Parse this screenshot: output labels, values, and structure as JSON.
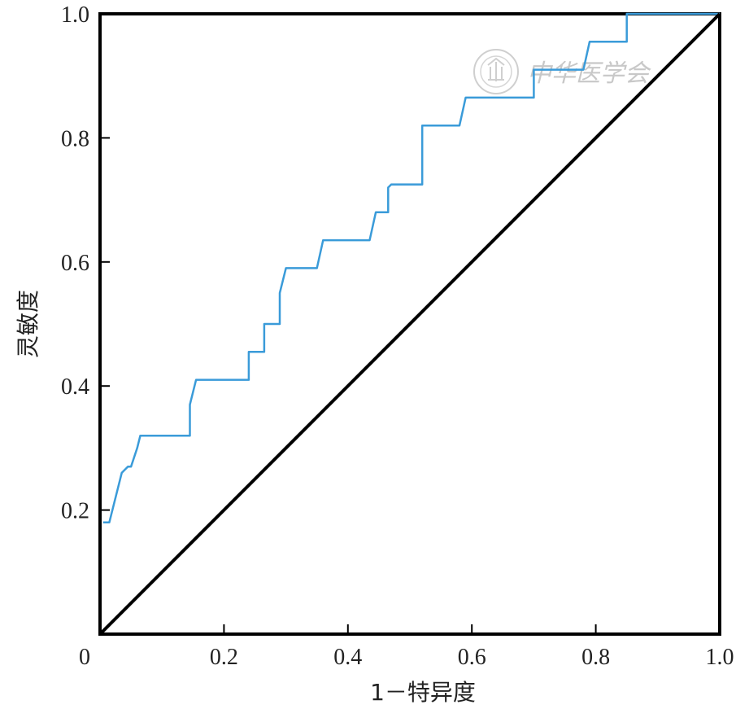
{
  "chart_data": {
    "type": "line",
    "title": "",
    "xlabel": "1－特异度",
    "ylabel": "灵敏度",
    "xlim": [
      0,
      1
    ],
    "ylim": [
      0,
      1
    ],
    "x_ticks": [
      {
        "value": 0,
        "label": "0"
      },
      {
        "value": 0.2,
        "label": "0.2"
      },
      {
        "value": 0.4,
        "label": "0.4"
      },
      {
        "value": 0.6,
        "label": "0.6"
      },
      {
        "value": 0.8,
        "label": "0.8"
      },
      {
        "value": 1.0,
        "label": "1.0"
      }
    ],
    "y_ticks": [
      {
        "value": 0.2,
        "label": "0.2"
      },
      {
        "value": 0.4,
        "label": "0.4"
      },
      {
        "value": 0.6,
        "label": "0.6"
      },
      {
        "value": 0.8,
        "label": "0.8"
      },
      {
        "value": 1.0,
        "label": "1.0"
      }
    ],
    "grid": false,
    "legend": "none",
    "series": [
      {
        "color": "#3a9bd9",
        "points": [
          [
            0.005,
            0.18
          ],
          [
            0.015,
            0.18
          ],
          [
            0.035,
            0.26
          ],
          [
            0.045,
            0.27
          ],
          [
            0.05,
            0.27
          ],
          [
            0.06,
            0.3
          ],
          [
            0.065,
            0.32
          ],
          [
            0.145,
            0.32
          ],
          [
            0.145,
            0.37
          ],
          [
            0.155,
            0.41
          ],
          [
            0.24,
            0.41
          ],
          [
            0.24,
            0.455
          ],
          [
            0.265,
            0.455
          ],
          [
            0.265,
            0.5
          ],
          [
            0.29,
            0.5
          ],
          [
            0.29,
            0.55
          ],
          [
            0.3,
            0.59
          ],
          [
            0.35,
            0.59
          ],
          [
            0.36,
            0.635
          ],
          [
            0.435,
            0.635
          ],
          [
            0.445,
            0.68
          ],
          [
            0.465,
            0.68
          ],
          [
            0.465,
            0.72
          ],
          [
            0.47,
            0.725
          ],
          [
            0.52,
            0.725
          ],
          [
            0.52,
            0.82
          ],
          [
            0.58,
            0.82
          ],
          [
            0.59,
            0.865
          ],
          [
            0.7,
            0.865
          ],
          [
            0.7,
            0.91
          ],
          [
            0.78,
            0.91
          ],
          [
            0.79,
            0.955
          ],
          [
            0.85,
            0.955
          ],
          [
            0.85,
            1.0
          ],
          [
            1.0,
            1.0
          ]
        ]
      },
      {
        "color": "#000000",
        "points": [
          [
            0,
            0
          ],
          [
            1,
            1
          ]
        ]
      }
    ],
    "watermark": {
      "text": "中华医学会",
      "color": "#c8c8c8"
    }
  }
}
